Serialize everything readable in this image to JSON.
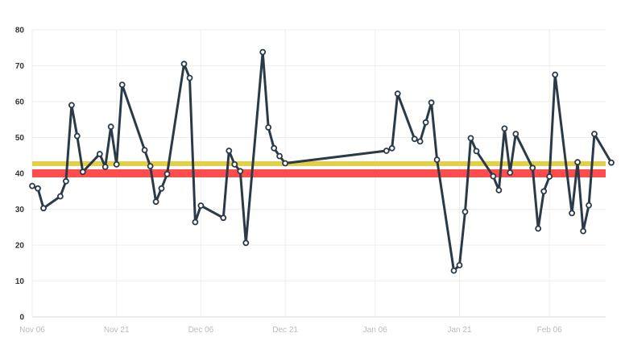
{
  "colors": {
    "line": "#2b3a48",
    "point_fill": "#ffffff",
    "band_red": "#ff4d4d",
    "band_yellow": "#e3cf4a",
    "grid": "#eeeeee",
    "ytick_text": "#333333",
    "xtick_text": "#bbbbbb"
  },
  "chart_data": {
    "type": "line",
    "title": "",
    "xlabel": "",
    "ylabel": "",
    "ylim": [
      0,
      80
    ],
    "xlim": [
      "2023-11-06",
      "2024-02-16"
    ],
    "y_ticks": [
      0,
      10,
      20,
      30,
      40,
      50,
      60,
      70,
      80
    ],
    "x_ticks": [
      {
        "date": "2023-11-06",
        "label": "Nov 06"
      },
      {
        "date": "2023-11-21",
        "label": "Nov 21"
      },
      {
        "date": "2023-12-06",
        "label": "Dec 06"
      },
      {
        "date": "2023-12-21",
        "label": "Dec 21"
      },
      {
        "date": "2024-01-06",
        "label": "Jan 06"
      },
      {
        "date": "2024-01-21",
        "label": "Jan 21"
      },
      {
        "date": "2024-02-06",
        "label": "Feb 06"
      }
    ],
    "grid": true,
    "reference_bands": [
      {
        "color": "band_red",
        "y": 40
      },
      {
        "color": "band_yellow",
        "y": 42.7
      }
    ],
    "series": [
      {
        "x": [
          "2023-11-06",
          "2023-11-07",
          "2023-11-08",
          "2023-11-11",
          "2023-11-12",
          "2023-11-13",
          "2023-11-14",
          "2023-11-15",
          "2023-11-18",
          "2023-11-19",
          "2023-11-20",
          "2023-11-21",
          "2023-11-22",
          "2023-11-26",
          "2023-11-27",
          "2023-11-28",
          "2023-11-29",
          "2023-11-30",
          "2023-12-03",
          "2023-12-04",
          "2023-12-05",
          "2023-12-06",
          "2023-12-10",
          "2023-12-11",
          "2023-12-12",
          "2023-12-13",
          "2023-12-14",
          "2023-12-17",
          "2023-12-18",
          "2023-12-19",
          "2023-12-20",
          "2023-12-21",
          "2024-01-08",
          "2024-01-09",
          "2024-01-10",
          "2024-01-13",
          "2024-01-14",
          "2024-01-15",
          "2024-01-16",
          "2024-01-17",
          "2024-01-20",
          "2024-01-21",
          "2024-01-22",
          "2024-01-23",
          "2024-01-24",
          "2024-01-27",
          "2024-01-28",
          "2024-01-29",
          "2024-01-30",
          "2024-01-31",
          "2024-02-03",
          "2024-02-04",
          "2024-02-05",
          "2024-02-06",
          "2024-02-07",
          "2024-02-10",
          "2024-02-11",
          "2024-02-12",
          "2024-02-13",
          "2024-02-14",
          "2024-02-17"
        ],
        "values": [
          36.5,
          35.8,
          30.3,
          33.6,
          37.8,
          59.0,
          50.4,
          40.4,
          45.4,
          41.8,
          53.0,
          42.5,
          64.7,
          46.5,
          42.0,
          32.1,
          35.8,
          39.8,
          70.5,
          66.6,
          26.4,
          31.0,
          27.6,
          46.3,
          42.5,
          40.6,
          20.6,
          73.8,
          52.8,
          47.0,
          44.8,
          42.8,
          46.3,
          47.0,
          62.2,
          49.6,
          48.9,
          54.2,
          59.7,
          43.8,
          12.9,
          14.4,
          29.3,
          49.8,
          46.2,
          39.2,
          35.3,
          52.5,
          40.2,
          51.0,
          41.5,
          24.6,
          35.0,
          39.1,
          67.5,
          28.9,
          43.1,
          23.9,
          31.1,
          51.0,
          43.0
        ]
      }
    ]
  }
}
